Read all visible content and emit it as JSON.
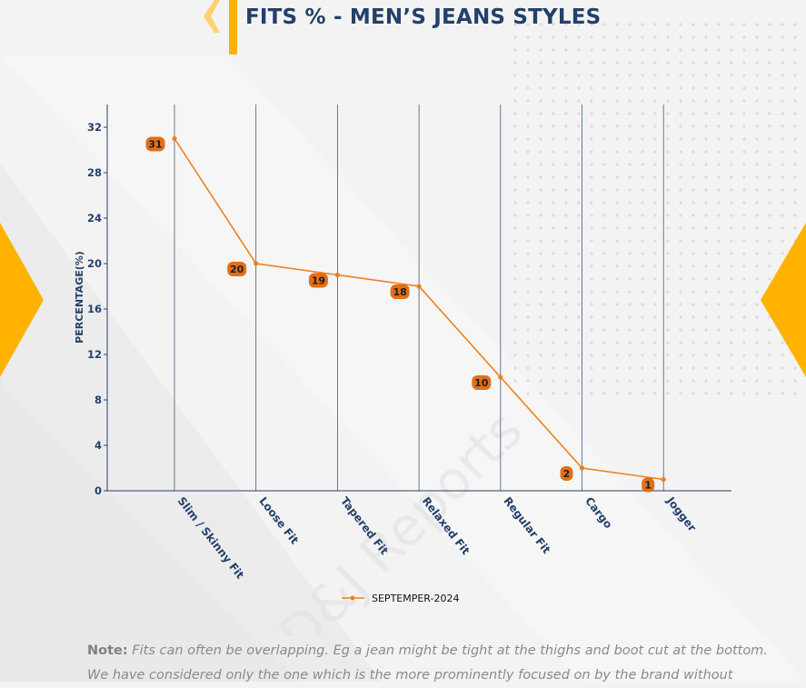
{
  "title": "FITS % - MEN’S JEANS STYLES",
  "watermark": "D&J Reports",
  "note": {
    "label": "Note:",
    "line1": "Fits can often be overlapping. Eg a jean might be tight at the thighs and boot cut at the bottom.",
    "line2": "We have considered only the one which is the more prominently focused on by the brand without"
  },
  "colors": {
    "line": "#f07f1e",
    "label_bg": "#e0701a",
    "axis_text": "#24406b",
    "accent": "#ffb300",
    "grid": "#24406b"
  },
  "chart_data": {
    "type": "line",
    "categories": [
      "Slim / Skinny Fit",
      "Loose Fit",
      "Tapered Fit",
      "Relaxed Fit",
      "Regular Fit",
      "Cargo",
      "Jogger"
    ],
    "series": [
      {
        "name": "SEPTEMPER-2024",
        "values": [
          31,
          20,
          19,
          18,
          10,
          2,
          1
        ]
      }
    ],
    "ylabel": "PERCENTAGE(%)",
    "xlabel": "",
    "ylim": [
      0,
      34
    ],
    "yticks": [
      0,
      4,
      8,
      12,
      16,
      20,
      24,
      28,
      32
    ],
    "grid": "vertical",
    "legend": "bottom-center"
  }
}
